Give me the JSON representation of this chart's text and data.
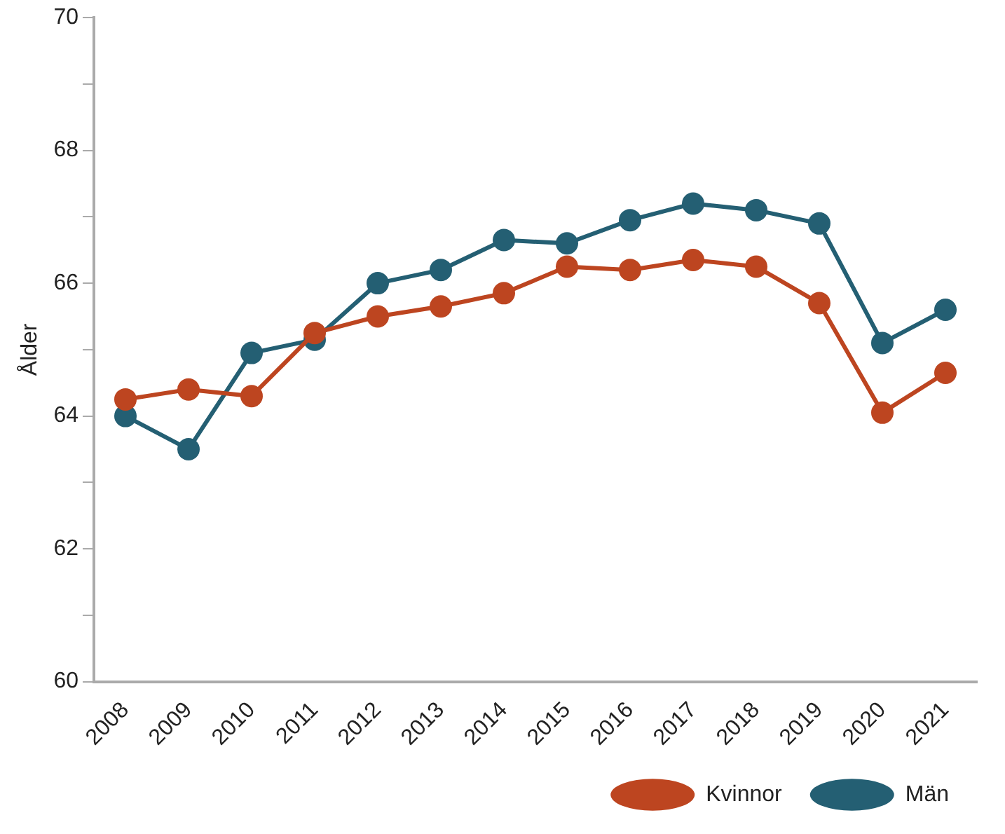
{
  "chart_data": {
    "type": "line",
    "ylabel": "Ålder",
    "categories": [
      "2008",
      "2009",
      "2010",
      "2011",
      "2012",
      "2013",
      "2014",
      "2015",
      "2016",
      "2017",
      "2018",
      "2019",
      "2020",
      "2021"
    ],
    "series": [
      {
        "name": "Män",
        "color": "#245f73",
        "values": [
          64.0,
          63.5,
          64.95,
          65.15,
          66.0,
          66.2,
          66.65,
          66.6,
          66.95,
          67.2,
          67.1,
          66.9,
          65.1,
          65.6
        ]
      },
      {
        "name": "Kvinnor",
        "color": "#bd4520",
        "values": [
          64.25,
          64.4,
          64.3,
          65.25,
          65.5,
          65.65,
          65.85,
          66.25,
          66.2,
          66.35,
          66.25,
          65.7,
          64.05,
          64.65
        ]
      }
    ],
    "ylim": [
      60,
      70
    ],
    "yticks": [
      60,
      {
        "value": 61,
        "label": null
      },
      62,
      {
        "value": 63,
        "label": null
      },
      64,
      {
        "value": 65,
        "label": null
      },
      66,
      {
        "value": 67,
        "label": null
      },
      68,
      {
        "value": 69,
        "label": null
      },
      70
    ],
    "grid": false,
    "legend": "bottom",
    "marker": "circle",
    "line_style": "solid"
  }
}
